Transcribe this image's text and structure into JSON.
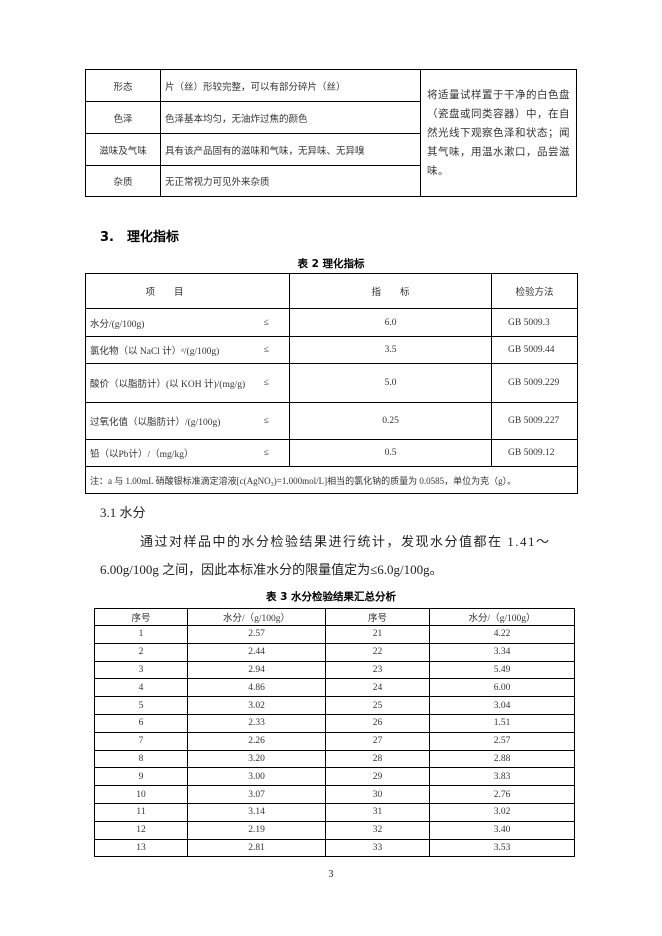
{
  "sensory_table": {
    "rows": [
      {
        "item": "形态",
        "requirement": "片（丝）形较完整，可以有部分碎片（丝）"
      },
      {
        "item": "色泽",
        "requirement": "色泽基本均匀，无油炸过焦的颜色"
      },
      {
        "item": "滋味及气味",
        "requirement": "具有该产品固有的滋味和气味，无异味、无异嗅"
      },
      {
        "item": "杂质",
        "requirement": "无正常视力可见外来杂质"
      }
    ],
    "method": "将适量试样置于干净的白色盘（瓷盘或同类容器）中，在自然光线下观察色泽和状态；闻其气味，用温水漱口，品尝滋味。"
  },
  "section3_heading": "3.　理化指标",
  "table2": {
    "caption": "表 2  理化指标",
    "headers": [
      "项　　目",
      "指　　标",
      "检验方法"
    ],
    "rows": [
      {
        "item": "水分/(g/100g)",
        "op": "≤",
        "value": "6.0",
        "method": "GB 5009.3"
      },
      {
        "item": "氯化物（以 NaCl 计）ᵃ/(g/100g)",
        "op": "≤",
        "value": "3.5",
        "method": "GB 5009.44"
      },
      {
        "item": "酸价（以脂肪计）(以 KOH 计)/(mg/g)",
        "op": "≤",
        "value": "5.0",
        "method": "GB 5009.229"
      },
      {
        "item": "过氧化值（以脂肪计）/(g/100g)",
        "op": "≤",
        "value": "0.25",
        "method": "GB 5009.227"
      },
      {
        "item": "铅（以Pb计）/（mg/kg）",
        "op": "≤",
        "value": "0.5",
        "method": "GB 5009.12"
      }
    ],
    "note": "注：a 与 1.00mL 硝酸银标准滴定溶液[c(AgNO₃)=1.000mol/L]相当的氯化钠的质量为 0.0585，单位为克（g）。"
  },
  "subsection_heading": "3.1  水分",
  "paragraph": {
    "line1": "通过对样品中的水分检验结果进行统计，发现水分值都在 1.41～",
    "line2": "6.00g/100g 之间，因此本标准水分的限量值定为≤6.0g/100g。"
  },
  "table3": {
    "caption": "表 3  水分检验结果汇总分析",
    "headers": [
      "序号",
      "水分/（g/100g）",
      "序号",
      "水分/（g/100g）"
    ],
    "rows": [
      [
        "1",
        "2.57",
        "21",
        "4.22"
      ],
      [
        "2",
        "2.44",
        "22",
        "3.34"
      ],
      [
        "3",
        "2.94",
        "23",
        "5.49"
      ],
      [
        "4",
        "4.86",
        "24",
        "6.00"
      ],
      [
        "5",
        "3.02",
        "25",
        "3.04"
      ],
      [
        "6",
        "2.33",
        "26",
        "1.51"
      ],
      [
        "7",
        "2.26",
        "27",
        "2.57"
      ],
      [
        "8",
        "3.20",
        "28",
        "2.88"
      ],
      [
        "9",
        "3.00",
        "29",
        "3.83"
      ],
      [
        "10",
        "3.07",
        "30",
        "2.76"
      ],
      [
        "11",
        "3.14",
        "31",
        "3.02"
      ],
      [
        "12",
        "2.19",
        "32",
        "3.40"
      ],
      [
        "13",
        "2.81",
        "33",
        "3.53"
      ]
    ]
  },
  "page_number": "3"
}
